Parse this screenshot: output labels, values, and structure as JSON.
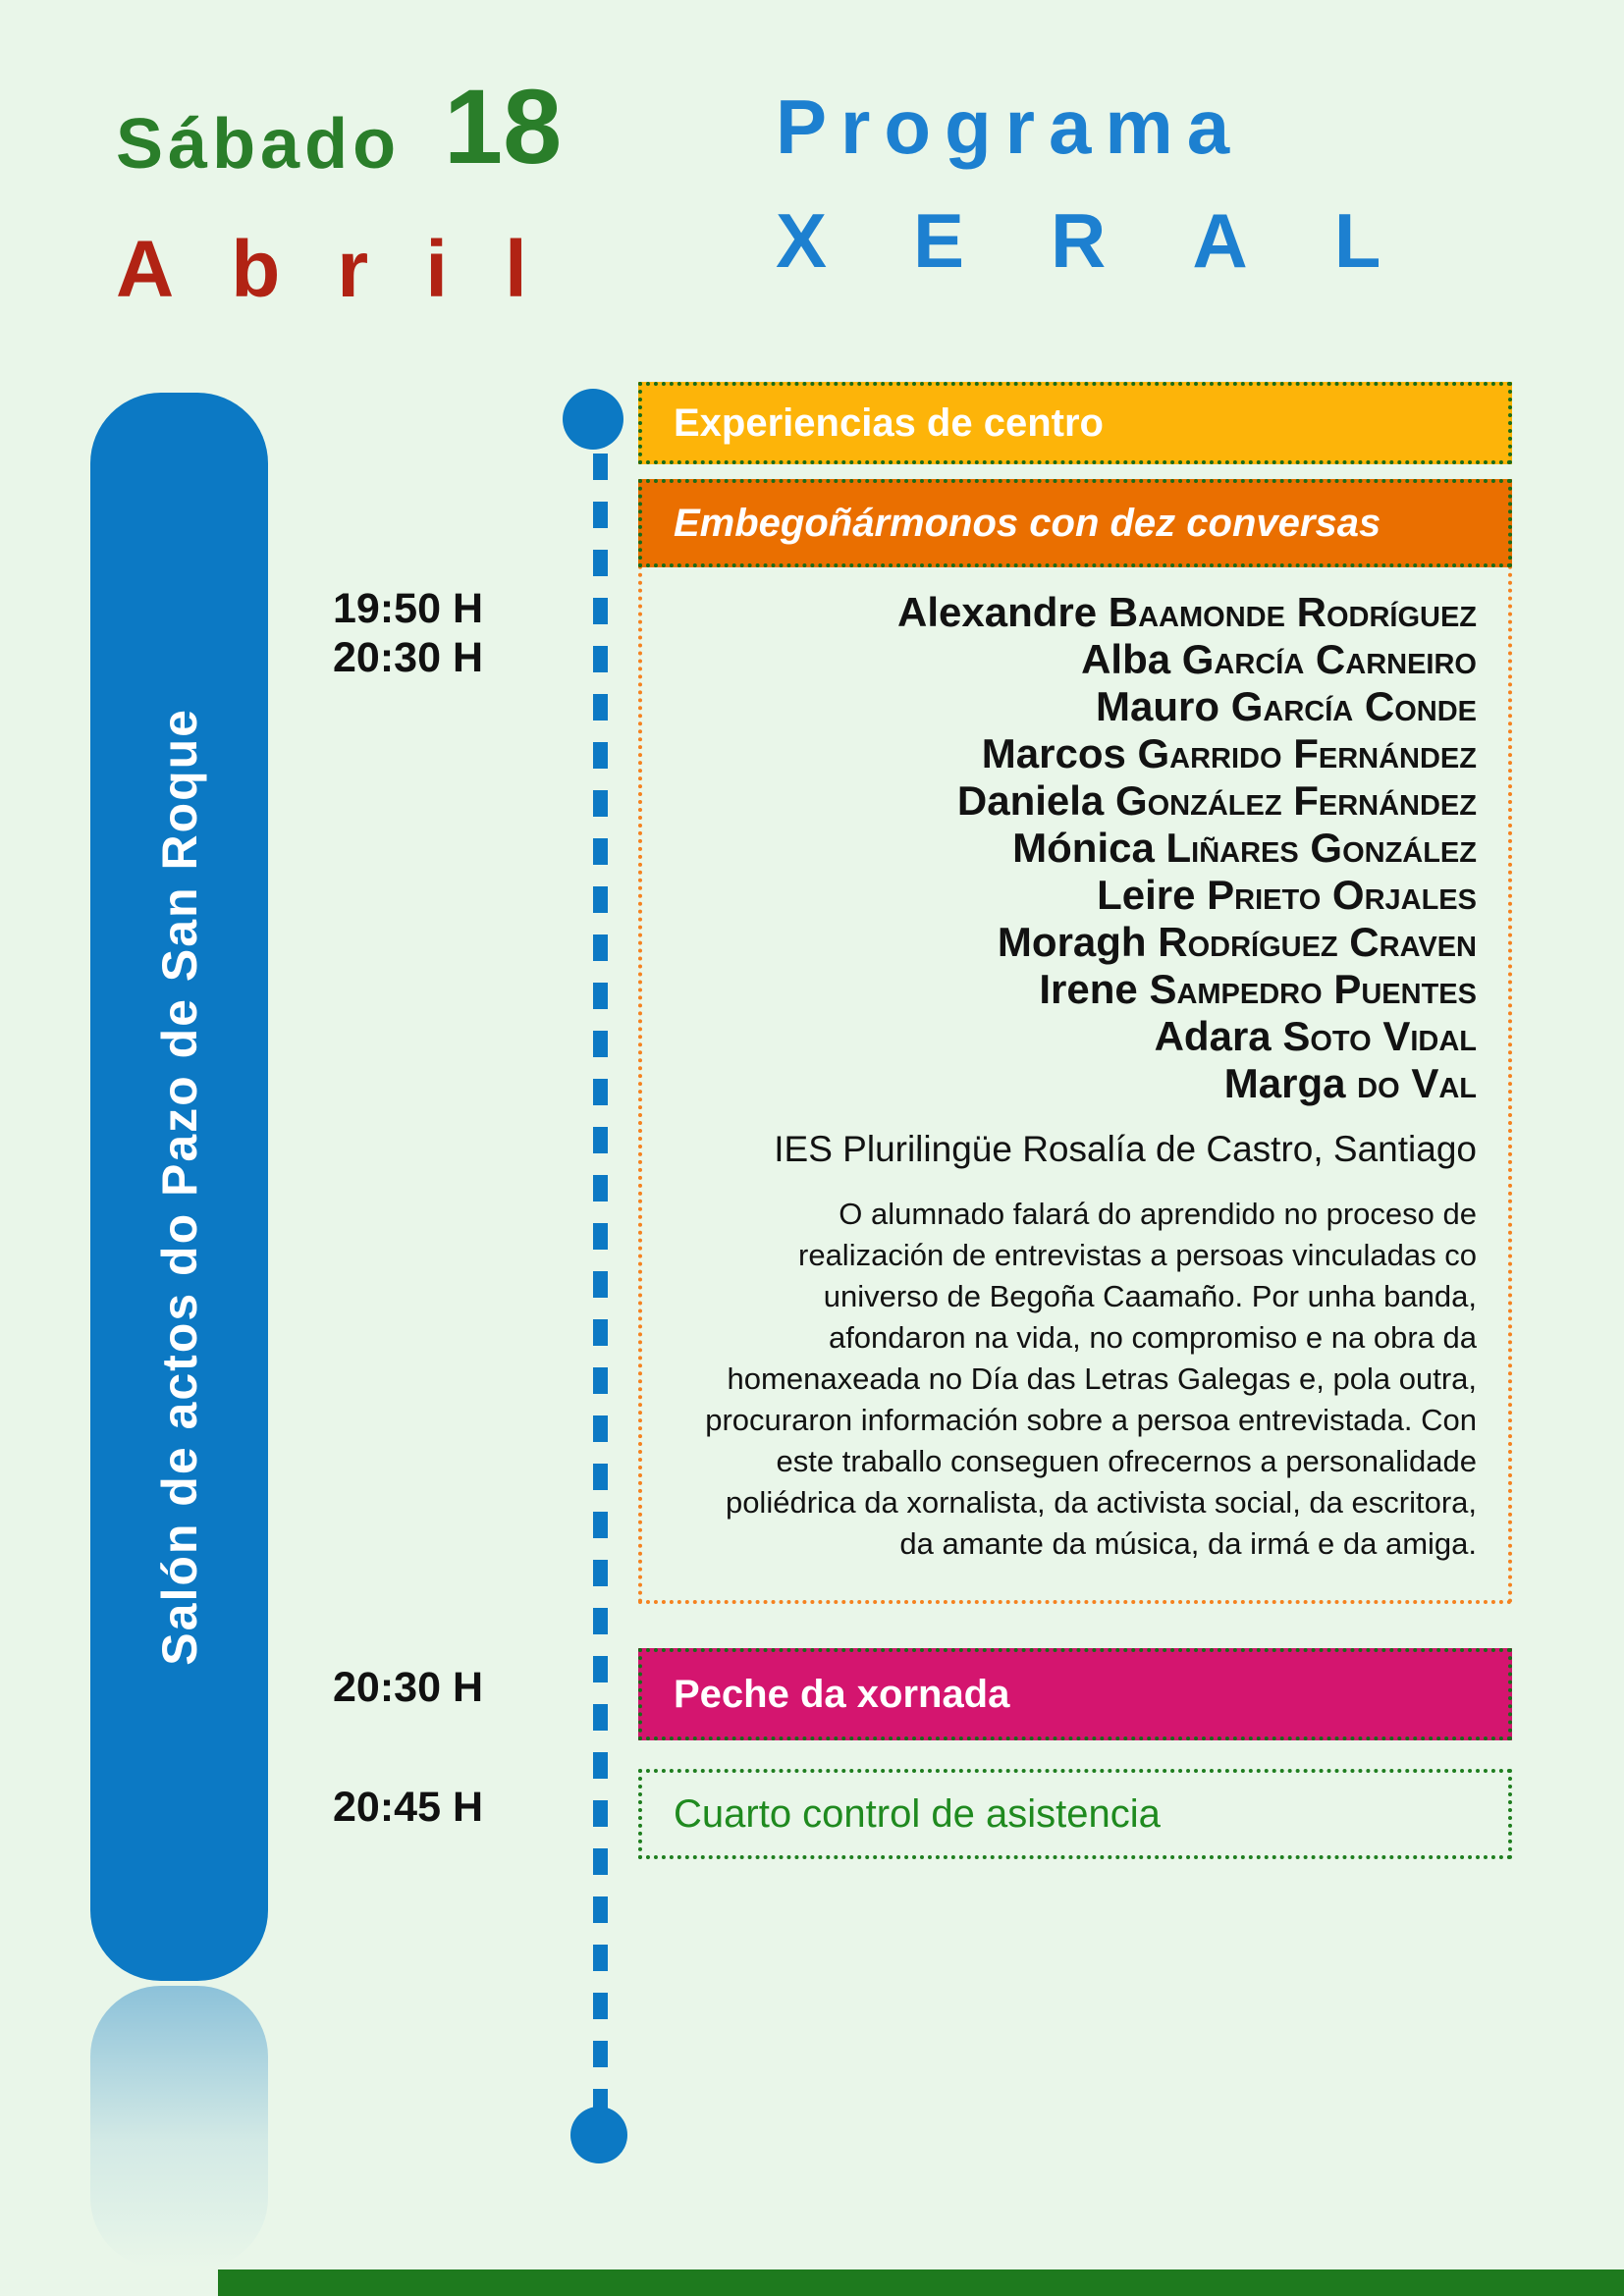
{
  "header": {
    "day_name": "Sábado",
    "day_number": "18",
    "month": "Abril",
    "program_title_line1": "Programa",
    "program_title_line2": "XERAL"
  },
  "venue_bar": {
    "label": "Salón de actos do Pazo de San Roque"
  },
  "schedule": {
    "slot1_start": "19:50 H",
    "slot1_end": "20:30 H",
    "slot2_time": "20:30 H",
    "slot3_time": "20:45 H"
  },
  "session1": {
    "category": "Experiencias de centro",
    "title": "Embegoñármonos con dez conversas",
    "speakers": [
      {
        "given": "Alexandre",
        "family": "Baamonde Rodríguez"
      },
      {
        "given": "Alba",
        "family": "García Carneiro"
      },
      {
        "given": "Mauro",
        "family": "García Conde"
      },
      {
        "given": "Marcos",
        "family": "Garrido Fernández"
      },
      {
        "given": "Daniela",
        "family": "González Fernández"
      },
      {
        "given": "Mónica",
        "family": "Liñares González"
      },
      {
        "given": "Leire",
        "family": "Prieto Orjales"
      },
      {
        "given": "Moragh",
        "family": "Rodríguez Craven"
      },
      {
        "given": "Irene",
        "family": "Sampedro Puentes"
      },
      {
        "given": "Adara",
        "family": "Soto Vidal"
      },
      {
        "given": "Marga",
        "family": "do Val"
      }
    ],
    "institution": "IES Plurilingüe Rosalía de Castro, Santiago",
    "description": "O alumnado falará do aprendido no proceso de realización de entrevistas a persoas vinculadas co universo de Begoña Caamaño. Por unha banda, afondaron na vida, no compromiso e na obra da homenaxeada no Día das Letras Galegas e, pola outra, procuraron información sobre a persoa entrevistada. Con este traballo conseguen ofrecernos a personalidade poliédrica da xornalista, da activista social, da escritora, da amante da música, da irmá e da amiga."
  },
  "session2": {
    "title": "Peche da xornada"
  },
  "session3": {
    "title": "Cuarto control de asistencia"
  },
  "colors": {
    "background": "#e9f6e9",
    "green_title": "#2a7e2a",
    "red_month": "#b12314",
    "blue_title": "#1d80d0",
    "blue_timeline": "#0c79c4",
    "yellow_category": "#fdb409",
    "orange_session": "#ea6f00",
    "orange_border": "#f58220",
    "green_border": "#1a6c1a",
    "pink_closing": "#d4156f",
    "green_control": "#1f8a1f"
  }
}
